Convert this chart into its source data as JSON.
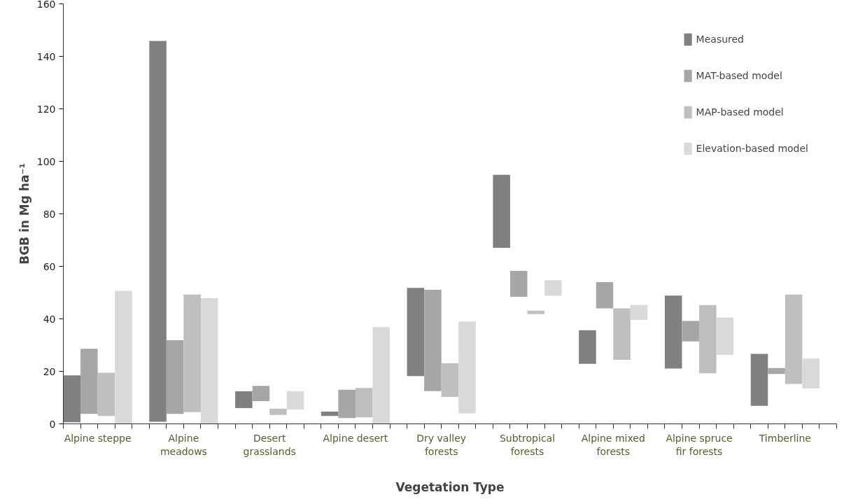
{
  "chart_data": {
    "type": "bar",
    "xlabel": "Vegetation Type",
    "ylabel": "BGB in Mg ha⁻¹",
    "categories": [
      "Alpine steppe",
      "Alpine meadows",
      "Desert grasslands",
      "Alpine desert",
      "Dry valley forests",
      "Subtropical forests",
      "Alpine mixed forests",
      "Alpine spruce fir forests",
      "Timberline"
    ],
    "series": [
      {
        "name": "Measured",
        "color": "#808080",
        "base": [
          0.6,
          0.8,
          6,
          3,
          18.2,
          67.1,
          22.9,
          21.1,
          6.9
        ],
        "values": [
          17.9,
          145.1,
          6.4,
          1.7,
          33.6,
          27.8,
          12.8,
          27.8,
          19.8
        ]
      },
      {
        "name": "MAT-based model",
        "color": "#a6a6a6",
        "base": [
          3.8,
          3.8,
          8.7,
          2.2,
          12.5,
          48.4,
          44,
          31.4,
          19
        ],
        "values": [
          24.8,
          28.1,
          5.8,
          10.8,
          38.6,
          9.9,
          10,
          7.8,
          2.3
        ]
      },
      {
        "name": "MAP-based model",
        "color": "#bfbfbf",
        "base": [
          3,
          4.5,
          3.4,
          2.5,
          10.3,
          41.8,
          24.4,
          19.3,
          15.2
        ],
        "values": [
          16.5,
          44.8,
          2.4,
          11.2,
          12.8,
          1.3,
          19.6,
          26,
          34.1
        ]
      },
      {
        "name": "Elevation-based model",
        "color": "#d9d9d9",
        "base": [
          0,
          0,
          5.5,
          0,
          4,
          48.8,
          39.6,
          26.3,
          13.5
        ],
        "values": [
          50.7,
          47.9,
          6.9,
          36.9,
          35,
          5.9,
          5.7,
          14.2,
          11.4
        ]
      }
    ],
    "ylim": [
      0,
      160
    ],
    "yticks": [
      0,
      20,
      40,
      60,
      80,
      100,
      120,
      140,
      160
    ],
    "grid": false,
    "legend": "top right"
  }
}
